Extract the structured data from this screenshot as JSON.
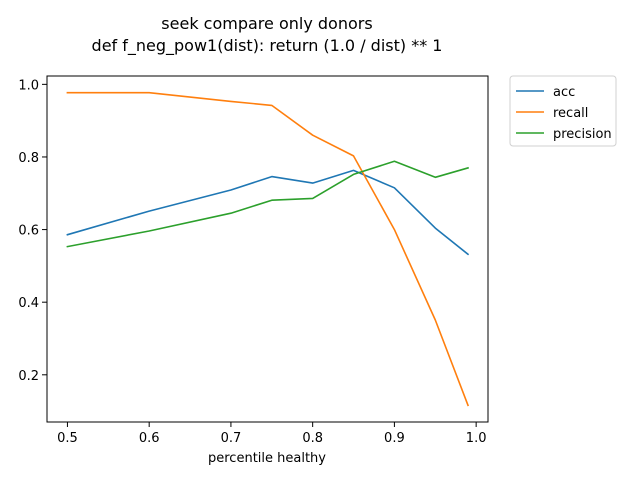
{
  "chart_data": {
    "type": "line",
    "title": "seek compare only donors",
    "subtitle": "def f_neg_pow1(dist): return (1.0 / dist) ** 1",
    "xlabel": "percentile healthy",
    "ylabel": "",
    "xlim": [
      0.475,
      1.0145
    ],
    "ylim": [
      0.07,
      1.023
    ],
    "xticks": [
      "0.5",
      "0.6",
      "0.7",
      "0.8",
      "0.9",
      "1.0"
    ],
    "yticks": [
      "0.2",
      "0.4",
      "0.6",
      "0.8",
      "1.0"
    ],
    "grid": false,
    "legend_position": "outside-top-right",
    "x": [
      0.5,
      0.6,
      0.7,
      0.75,
      0.8,
      0.85,
      0.9,
      0.95,
      0.99
    ],
    "series": [
      {
        "name": "acc",
        "color": "#1f77b4",
        "values": [
          0.586,
          0.651,
          0.709,
          0.746,
          0.728,
          0.763,
          0.715,
          0.604,
          0.532
        ]
      },
      {
        "name": "recall",
        "color": "#ff7f0e",
        "values": [
          0.977,
          0.977,
          0.953,
          0.942,
          0.86,
          0.803,
          0.6,
          0.351,
          0.116
        ]
      },
      {
        "name": "precision",
        "color": "#2ca02c",
        "values": [
          0.553,
          0.596,
          0.645,
          0.681,
          0.686,
          0.752,
          0.788,
          0.744,
          0.77
        ]
      }
    ]
  }
}
